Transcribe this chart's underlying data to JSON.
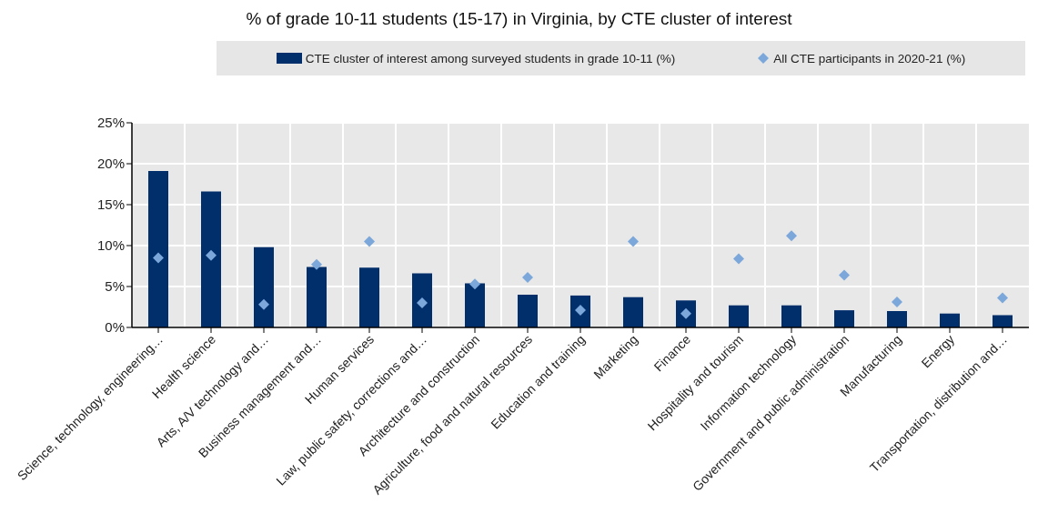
{
  "chart_data": {
    "type": "bar",
    "title": "% of grade 10-11 students (15-17) in Virginia, by CTE cluster of interest",
    "categories": [
      "Science, technology, engineering…",
      "Health science",
      "Arts, A/V technology and…",
      "Business management and…",
      "Human services",
      "Law, public safety, corrections and…",
      "Architecture and construction",
      "Agriculture, food and natural resources",
      "Education and training",
      "Marketing",
      "Finance",
      "Hospitality and tourism",
      "Information technology",
      "Government and public administration",
      "Manufacturing",
      "Energy",
      "Transportation, distribution and…"
    ],
    "series": [
      {
        "name": "CTE cluster of interest among surveyed students in grade 10-11 (%)",
        "color": "#002f6c",
        "values": [
          19.1,
          16.6,
          9.8,
          7.4,
          7.3,
          6.6,
          5.4,
          4.0,
          3.9,
          3.7,
          3.3,
          2.7,
          2.7,
          2.1,
          2.0,
          1.7,
          1.5
        ]
      },
      {
        "name": "All CTE participants in 2020-21 (%)",
        "type": "scatter",
        "marker": "diamond",
        "color": "#7ba7db",
        "values": [
          8.5,
          8.8,
          2.8,
          7.7,
          10.5,
          3.0,
          5.3,
          6.1,
          2.1,
          10.5,
          1.7,
          8.4,
          11.2,
          6.4,
          3.1,
          null,
          3.6
        ]
      }
    ],
    "ylim": [
      0,
      25
    ],
    "yticks": [
      {
        "value": 0,
        "label": "0%"
      },
      {
        "value": 5,
        "label": "5%"
      },
      {
        "value": 10,
        "label": "10%"
      },
      {
        "value": 15,
        "label": "15%"
      },
      {
        "value": 20,
        "label": "20%"
      },
      {
        "value": 25,
        "label": "25%"
      }
    ],
    "grid": true,
    "legend": "top"
  }
}
